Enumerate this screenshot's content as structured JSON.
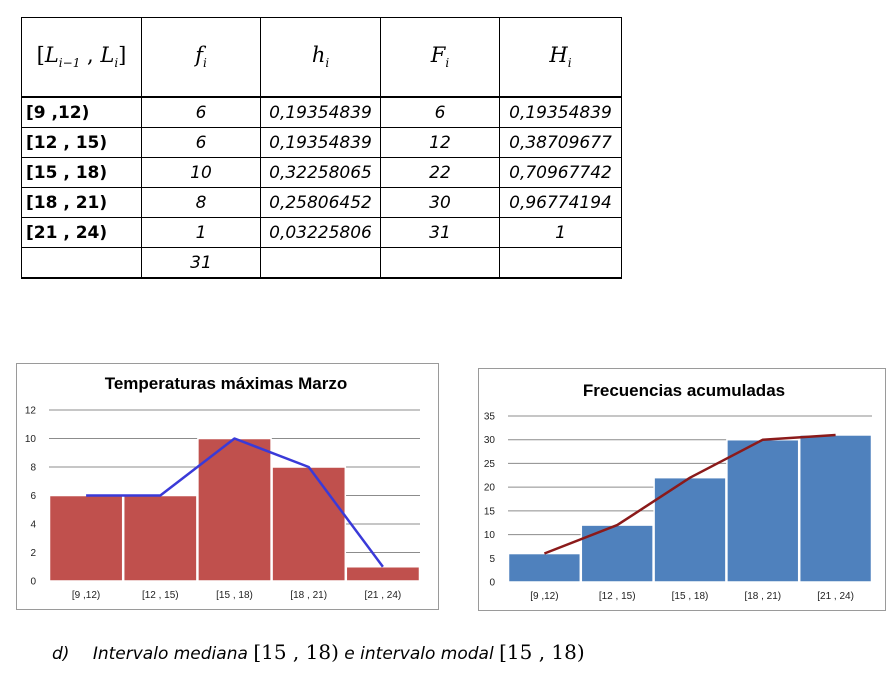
{
  "table": {
    "headers": {
      "interval": {
        "open": "[",
        "L1": "L",
        "L1_sub": "i−1",
        "sep": " , ",
        "L2": "L",
        "L2_sub": "i",
        "close": "]"
      },
      "fi": {
        "sym": "f",
        "sub": "i"
      },
      "hi": {
        "sym": "h",
        "sub": "i"
      },
      "Fi": {
        "sym": "F",
        "sub": "i"
      },
      "Hi": {
        "sym": "H",
        "sub": "i"
      }
    },
    "rows": [
      {
        "interval": "[9 ,12)",
        "fi": "6",
        "hi": "0,19354839",
        "Fi": "6",
        "Hi": "0,19354839"
      },
      {
        "interval": "[12 , 15)",
        "fi": "6",
        "hi": "0,19354839",
        "Fi": "12",
        "Hi": "0,38709677"
      },
      {
        "interval": "[15 , 18)",
        "fi": "10",
        "hi": "0,32258065",
        "Fi": "22",
        "Hi": "0,70967742"
      },
      {
        "interval": "[18 , 21)",
        "fi": "8",
        "hi": "0,25806452",
        "Fi": "30",
        "Hi": "0,96774194"
      },
      {
        "interval": "[21 , 24)",
        "fi": "1",
        "hi": "0,03225806",
        "Fi": "31",
        "Hi": "1"
      }
    ],
    "total": {
      "interval": "",
      "fi": "31",
      "hi": "",
      "Fi": "",
      "Hi": ""
    }
  },
  "chart_data": [
    {
      "type": "bar",
      "title": "Temperaturas máximas Marzo",
      "categories": [
        "[9 ,12)",
        "[12 , 15)",
        "[15 , 18)",
        "[18 , 21)",
        "[21 , 24)"
      ],
      "values": [
        6,
        6,
        10,
        8,
        1
      ],
      "ylim": [
        0,
        12
      ],
      "yticks": [
        0,
        2,
        4,
        6,
        8,
        10,
        12
      ],
      "grid": true,
      "bar_color": "#c0504d",
      "line_color": "#3a3ad8",
      "overlay_line": {
        "type": "line",
        "values": [
          6,
          6,
          10,
          8,
          1
        ]
      }
    },
    {
      "type": "bar",
      "title": "Frecuencias acumuladas",
      "categories": [
        "[9 ,12)",
        "[12 , 15)",
        "[15 , 18)",
        "[18 , 21)",
        "[21 , 24)"
      ],
      "values": [
        6,
        12,
        22,
        30,
        31
      ],
      "ylim": [
        0,
        35
      ],
      "yticks": [
        0,
        5,
        10,
        15,
        20,
        25,
        30,
        35
      ],
      "grid": true,
      "bar_color": "#4f81bd",
      "line_color": "#8b1a1a",
      "overlay_line": {
        "type": "line",
        "values": [
          6,
          12,
          22,
          30,
          31
        ]
      }
    }
  ],
  "footnote": {
    "label": "d)",
    "text1": "Intervalo mediana",
    "math1": "[15 , 18)",
    "text2": "e intervalo modal",
    "math2": "[15 , 18)"
  }
}
